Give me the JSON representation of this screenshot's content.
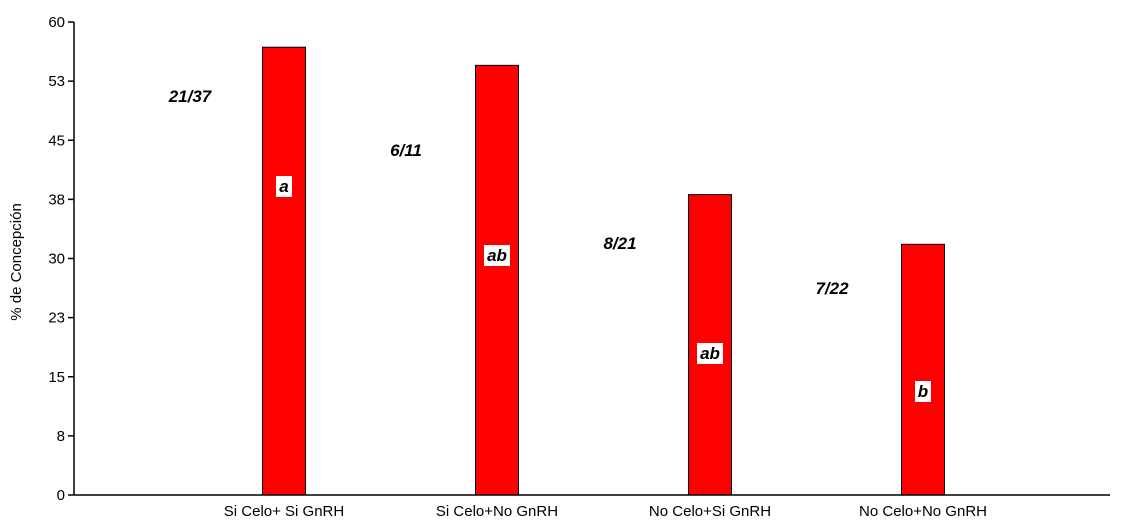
{
  "chart_data": {
    "type": "bar",
    "title": "",
    "xlabel": "",
    "ylabel": "% de Concepción",
    "ylim": [
      0,
      60
    ],
    "yticks": [
      "0",
      "8",
      "15",
      "23",
      "30",
      "38",
      "45",
      "53",
      "60"
    ],
    "categories": [
      "Si Celo+ Si GnRH",
      "Si Celo+No GnRH",
      "No Celo+Si GnRH",
      "No Celo+No GnRH"
    ],
    "values": [
      56.8,
      54.5,
      38.1,
      31.8
    ],
    "ratio_labels": [
      "21/37",
      "6/11",
      "8/21",
      "7/22"
    ],
    "significance_letters": [
      "a",
      "ab",
      "ab",
      "b"
    ],
    "bar_color": "#ff0000",
    "grid": false
  }
}
